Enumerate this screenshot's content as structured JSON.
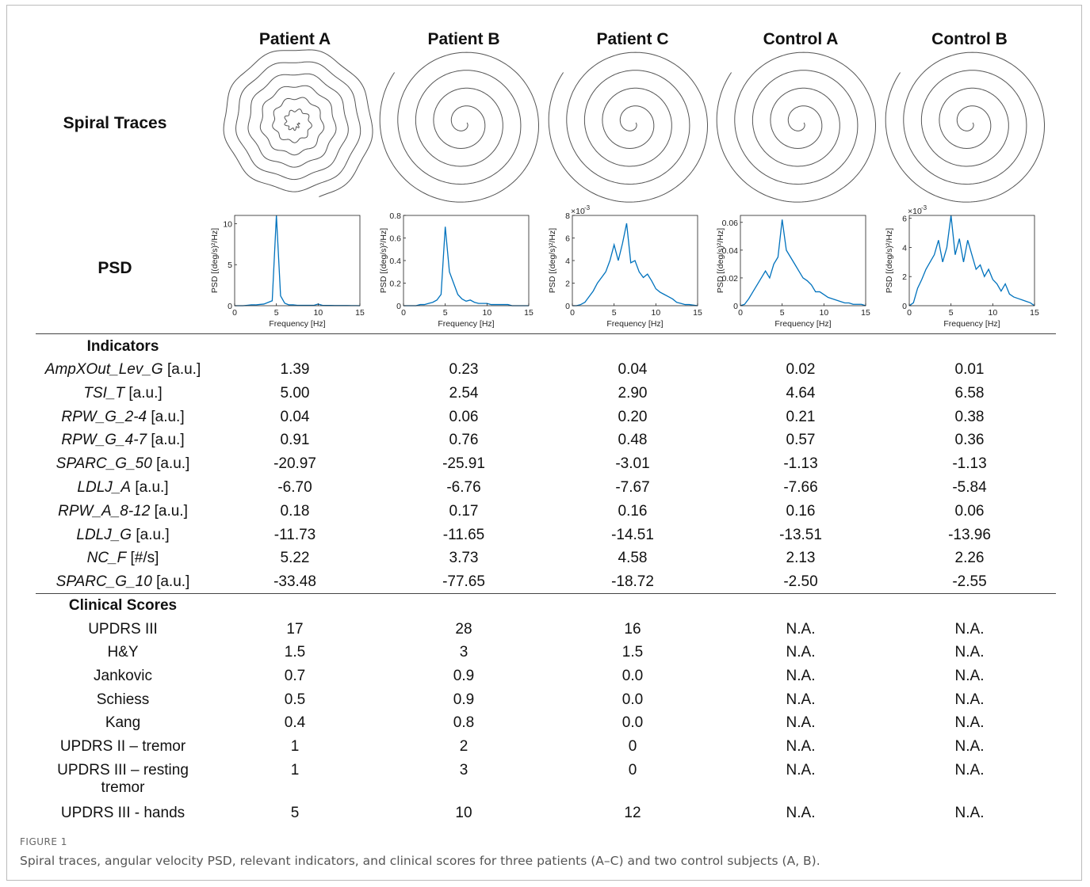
{
  "columns": [
    "Patient A",
    "Patient B",
    "Patient C",
    "Control A",
    "Control B"
  ],
  "row_labels": {
    "spiral": "Spiral Traces",
    "psd": "PSD"
  },
  "chart_data": [
    {
      "type": "line",
      "y_label": "PSD [(deg/s)²/Hz]",
      "x_label": "Frequency [Hz]",
      "color": "#0072bd",
      "xlim": [
        0,
        15
      ],
      "ylim": [
        0,
        11
      ],
      "xticks": [
        0,
        5,
        10,
        15
      ],
      "yticks": [
        0,
        5,
        10
      ],
      "x": [
        0,
        0.5,
        1,
        1.5,
        2,
        2.5,
        3,
        3.5,
        4,
        4.5,
        5,
        5.5,
        6,
        6.5,
        7,
        7.5,
        8,
        8.5,
        9,
        9.5,
        10,
        10.5,
        11,
        11.5,
        12,
        12.5,
        13,
        13.5,
        14,
        14.5,
        15
      ],
      "values": [
        0,
        0,
        0,
        0.05,
        0.1,
        0.1,
        0.15,
        0.2,
        0.4,
        0.6,
        11,
        1.2,
        0.3,
        0.1,
        0.1,
        0.05,
        0.05,
        0.05,
        0.05,
        0.05,
        0.2,
        0.05,
        0.03,
        0.03,
        0.02,
        0.02,
        0.02,
        0.02,
        0.01,
        0.01,
        0
      ]
    },
    {
      "type": "line",
      "y_label": "PSD [(deg/s)²/Hz]",
      "x_label": "Frequency [Hz]",
      "color": "#0072bd",
      "xlim": [
        0,
        15
      ],
      "ylim": [
        0,
        0.8
      ],
      "xticks": [
        0,
        5,
        10,
        15
      ],
      "yticks": [
        0,
        0.2,
        0.4,
        0.6,
        0.8
      ],
      "x": [
        0,
        0.5,
        1,
        1.5,
        2,
        2.5,
        3,
        3.5,
        4,
        4.5,
        5,
        5.5,
        6,
        6.5,
        7,
        7.5,
        8,
        8.5,
        9,
        9.5,
        10,
        10.5,
        11,
        11.5,
        12,
        12.5,
        13,
        13.5,
        14,
        14.5,
        15
      ],
      "values": [
        0,
        0,
        0,
        0,
        0.01,
        0.01,
        0.02,
        0.03,
        0.05,
        0.1,
        0.7,
        0.3,
        0.2,
        0.1,
        0.06,
        0.04,
        0.05,
        0.03,
        0.02,
        0.02,
        0.02,
        0.01,
        0.01,
        0.01,
        0.01,
        0.01,
        0,
        0,
        0,
        0,
        0
      ]
    },
    {
      "type": "line",
      "y_label": "PSD [(deg/s)²/Hz]",
      "x_label": "Frequency [Hz]",
      "color": "#0072bd",
      "y_exponent": {
        "base": "×10",
        "power": "-3"
      },
      "xlim": [
        0,
        15
      ],
      "ylim": [
        0,
        8
      ],
      "xticks": [
        0,
        5,
        10,
        15
      ],
      "yticks": [
        0,
        2,
        4,
        6,
        8
      ],
      "x": [
        0,
        0.5,
        1,
        1.5,
        2,
        2.5,
        3,
        3.5,
        4,
        4.5,
        5,
        5.5,
        6,
        6.5,
        7,
        7.5,
        8,
        8.5,
        9,
        9.5,
        10,
        10.5,
        11,
        11.5,
        12,
        12.5,
        13,
        13.5,
        14,
        14.5,
        15
      ],
      "values": [
        0,
        0,
        0.1,
        0.3,
        0.8,
        1.3,
        2,
        2.5,
        3,
        4,
        5.4,
        4,
        5.5,
        7.3,
        3.8,
        4,
        3,
        2.5,
        2.8,
        2.2,
        1.5,
        1.2,
        1,
        0.8,
        0.6,
        0.3,
        0.2,
        0.1,
        0.1,
        0.05,
        0
      ]
    },
    {
      "type": "line",
      "y_label": "PSD [(deg/s)²/Hz]",
      "x_label": "Frequency [Hz]",
      "color": "#0072bd",
      "xlim": [
        0,
        15
      ],
      "ylim": [
        0,
        0.065
      ],
      "xticks": [
        0,
        5,
        10,
        15
      ],
      "yticks": [
        0,
        0.02,
        0.04,
        0.06
      ],
      "x": [
        0,
        0.5,
        1,
        1.5,
        2,
        2.5,
        3,
        3.5,
        4,
        4.5,
        5,
        5.5,
        6,
        6.5,
        7,
        7.5,
        8,
        8.5,
        9,
        9.5,
        10,
        10.5,
        11,
        11.5,
        12,
        12.5,
        13,
        13.5,
        14,
        14.5,
        15
      ],
      "values": [
        0,
        0.001,
        0.005,
        0.01,
        0.015,
        0.02,
        0.025,
        0.02,
        0.03,
        0.035,
        0.062,
        0.04,
        0.035,
        0.03,
        0.025,
        0.02,
        0.018,
        0.015,
        0.01,
        0.01,
        0.008,
        0.006,
        0.005,
        0.004,
        0.003,
        0.002,
        0.002,
        0.001,
        0.001,
        0.001,
        0
      ]
    },
    {
      "type": "line",
      "y_label": "PSD [(deg/s)²/Hz]",
      "x_label": "Frequency [Hz]",
      "color": "#0072bd",
      "y_exponent": {
        "base": "×10",
        "power": "-3"
      },
      "xlim": [
        0,
        15
      ],
      "ylim": [
        0,
        6.2
      ],
      "xticks": [
        0,
        5,
        10,
        15
      ],
      "yticks": [
        0,
        2,
        4,
        6
      ],
      "x": [
        0,
        0.5,
        1,
        1.5,
        2,
        2.5,
        3,
        3.5,
        4,
        4.5,
        5,
        5.5,
        6,
        6.5,
        7,
        7.5,
        8,
        8.5,
        9,
        9.5,
        10,
        10.5,
        11,
        11.5,
        12,
        12.5,
        13,
        13.5,
        14,
        14.5,
        15
      ],
      "values": [
        0,
        0.2,
        1.2,
        1.8,
        2.5,
        3,
        3.5,
        4.5,
        3,
        4,
        6.2,
        3.5,
        4.6,
        3,
        4.5,
        3.5,
        2.5,
        2.8,
        2,
        2.5,
        1.8,
        1.5,
        1,
        1.5,
        0.8,
        0.6,
        0.5,
        0.4,
        0.3,
        0.2,
        0
      ]
    }
  ],
  "indicators": {
    "heading": "Indicators",
    "rows": [
      {
        "name": "AmpXOut_Lev_G",
        "unit": "[a.u.]",
        "values": [
          "1.39",
          "0.23",
          "0.04",
          "0.02",
          "0.01"
        ]
      },
      {
        "name": "TSI_T",
        "unit": "[a.u.]",
        "values": [
          "5.00",
          "2.54",
          "2.90",
          "4.64",
          "6.58"
        ]
      },
      {
        "name": "RPW_G_2-4",
        "unit": "[a.u.]",
        "values": [
          "0.04",
          "0.06",
          "0.20",
          "0.21",
          "0.38"
        ]
      },
      {
        "name": "RPW_G_4-7",
        "unit": "[a.u.]",
        "values": [
          "0.91",
          "0.76",
          "0.48",
          "0.57",
          "0.36"
        ]
      },
      {
        "name": "SPARC_G_50",
        "unit": "[a.u.]",
        "values": [
          "-20.97",
          "-25.91",
          "-3.01",
          "-1.13",
          "-1.13"
        ]
      },
      {
        "name": "LDLJ_A",
        "unit": "[a.u.]",
        "values": [
          "-6.70",
          "-6.76",
          "-7.67",
          "-7.66",
          "-5.84"
        ]
      },
      {
        "name": "RPW_A_8-12",
        "unit": "[a.u.]",
        "values": [
          "0.18",
          "0.17",
          "0.16",
          "0.16",
          "0.06"
        ]
      },
      {
        "name": "LDLJ_G",
        "unit": "[a.u.]",
        "values": [
          "-11.73",
          "-11.65",
          "-14.51",
          "-13.51",
          "-13.96"
        ]
      },
      {
        "name": "NC_F",
        "unit": "[#/s]",
        "values": [
          "5.22",
          "3.73",
          "4.58",
          "2.13",
          "2.26"
        ]
      },
      {
        "name": "SPARC_G_10",
        "unit": "[a.u.]",
        "values": [
          "-33.48",
          "-77.65",
          "-18.72",
          "-2.50",
          "-2.55"
        ]
      }
    ]
  },
  "clinical": {
    "heading": "Clinical Scores",
    "rows": [
      {
        "name": "UPDRS III",
        "values": [
          "17",
          "28",
          "16",
          "N.A.",
          "N.A."
        ]
      },
      {
        "name": "H&Y",
        "values": [
          "1.5",
          "3",
          "1.5",
          "N.A.",
          "N.A."
        ]
      },
      {
        "name": "Jankovic",
        "values": [
          "0.7",
          "0.9",
          "0.0",
          "N.A.",
          "N.A."
        ]
      },
      {
        "name": "Schiess",
        "values": [
          "0.5",
          "0.9",
          "0.0",
          "N.A.",
          "N.A."
        ]
      },
      {
        "name": "Kang",
        "values": [
          "0.4",
          "0.8",
          "0.0",
          "N.A.",
          "N.A."
        ]
      },
      {
        "name": "UPDRS II – tremor",
        "values": [
          "1",
          "2",
          "0",
          "N.A.",
          "N.A."
        ]
      },
      {
        "name": "UPDRS III – resting tremor",
        "values": [
          "1",
          "3",
          "0",
          "N.A.",
          "N.A."
        ]
      },
      {
        "name": "UPDRS III - hands",
        "values": [
          "5",
          "10",
          "12",
          "N.A.",
          "N.A."
        ]
      }
    ]
  },
  "caption": {
    "label": "FIGURE 1",
    "text": "Spiral traces, angular velocity PSD, relevant indicators, and clinical scores for three patients (A–C) and two control subjects (A, B)."
  }
}
